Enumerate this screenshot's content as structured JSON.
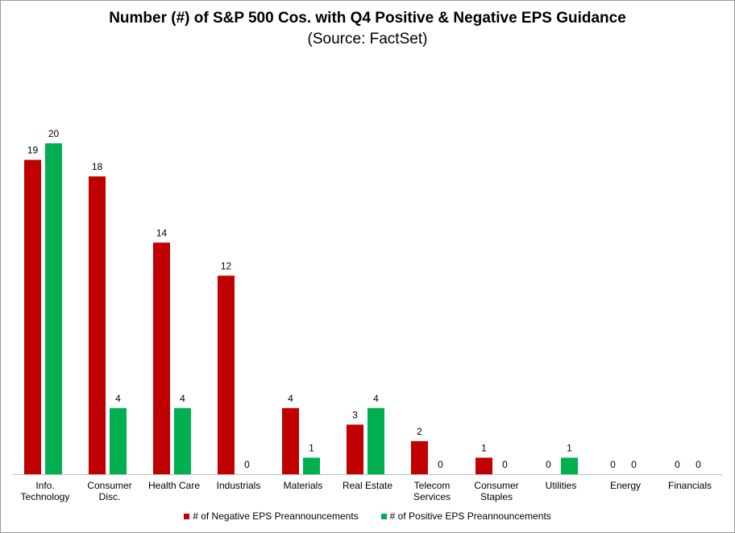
{
  "chart_data": {
    "type": "bar",
    "title": "Number (#) of S&P 500 Cos. with Q4 Positive & Negative EPS Guidance",
    "subtitle": "(Source: FactSet)",
    "categories": [
      [
        "Info.",
        "Technology"
      ],
      [
        "Consumer",
        "Disc."
      ],
      [
        "Health Care"
      ],
      [
        "Industrials"
      ],
      [
        "Materials"
      ],
      [
        "Real Estate"
      ],
      [
        "Telecom",
        "Services"
      ],
      [
        "Consumer",
        "Staples"
      ],
      [
        "Utilities"
      ],
      [
        "Energy"
      ],
      [
        "Financials"
      ]
    ],
    "series": [
      {
        "name": "# of Negative EPS Preannouncements",
        "color": "#c00000",
        "values": [
          19,
          18,
          14,
          12,
          4,
          3,
          2,
          1,
          0,
          0,
          0
        ]
      },
      {
        "name": "# of Positive EPS Preannouncements",
        "color": "#00b050",
        "values": [
          20,
          4,
          4,
          0,
          1,
          4,
          0,
          0,
          1,
          0,
          0
        ]
      }
    ],
    "ylim": [
      0,
      20
    ],
    "grid": false,
    "legend": "bottom",
    "data_labels": true
  }
}
